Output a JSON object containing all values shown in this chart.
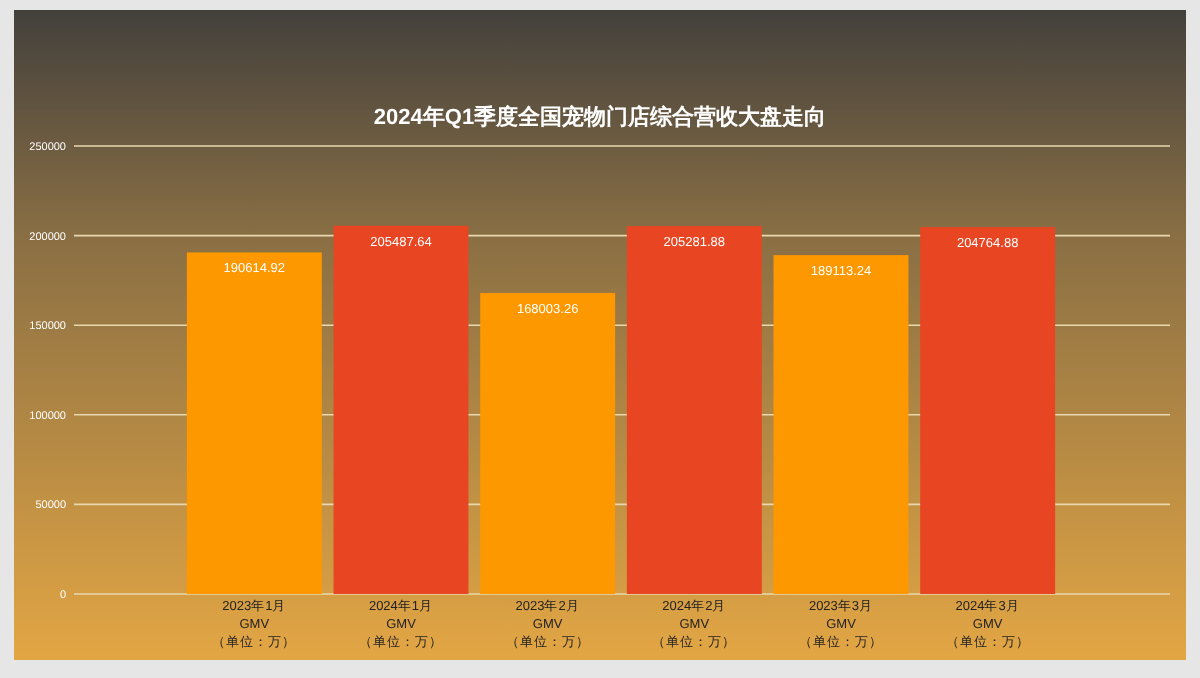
{
  "chart_data": {
    "type": "bar",
    "title": "2024年Q1季度全国宠物门店综合营收大盘走向",
    "categories": [
      "2023年1月\nGMV\n（单位：万）",
      "2024年1月\nGMV\n（单位：万）",
      "2023年2月\nGMV\n（单位：万）",
      "2024年2月\nGMV\n（单位：万）",
      "2023年3月\nGMV\n（单位：万）",
      "2024年3月\nGMV\n（单位：万）"
    ],
    "values": [
      190614.92,
      205487.64,
      168003.26,
      205281.88,
      189113.24,
      204764.88
    ],
    "colors": [
      "#fe9800",
      "#e84522",
      "#fe9800",
      "#e84522",
      "#fe9800",
      "#e84522"
    ],
    "ylim": [
      0,
      250000
    ],
    "yticks": [
      0,
      50000,
      100000,
      150000,
      200000,
      250000
    ],
    "grid": "y",
    "data_labels": true
  }
}
